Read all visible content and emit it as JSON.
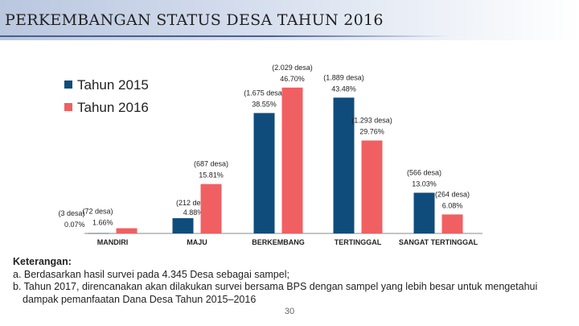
{
  "title": "PERKEMBANGAN STATUS DESA TAHUN 2016",
  "chart_data": {
    "type": "bar",
    "categories": [
      "MANDIRI",
      "MAJU",
      "BERKEMBANG",
      "TERTINGGAL",
      "SANGAT TERTINGGAL"
    ],
    "series": [
      {
        "name": "Tahun 2015",
        "color": "#0f4c7c",
        "values": [
          0.07,
          4.88,
          38.55,
          43.48,
          13.03
        ],
        "labels": [
          [
            "(3 desa)",
            "0.07%"
          ],
          [
            "(212 desa)",
            "4.88%"
          ],
          [
            "(1.675 desa)",
            "38.55%"
          ],
          [
            "(1.889 desa)",
            "43.48%"
          ],
          [
            "(566 desa)",
            "13.03%"
          ]
        ]
      },
      {
        "name": "Tahun 2016",
        "color": "#f06062",
        "values": [
          1.66,
          15.81,
          46.7,
          29.76,
          6.08
        ],
        "labels": [
          [
            "(72 desa)",
            "1.66%"
          ],
          [
            "(687 desa)",
            "15.81%"
          ],
          [
            "(2.029 desa)",
            "46.70%"
          ],
          [
            "(1.293 desa)",
            "29.76%"
          ],
          [
            "(264 desa)",
            "6.08%"
          ]
        ]
      }
    ],
    "ylim": [
      0,
      50
    ],
    "legend": "top-left"
  },
  "notes": {
    "heading": "Keterangan:",
    "items": [
      "a. Berdasarkan hasil survei pada 4.345 Desa sebagai sampel;",
      "b. Tahun 2017, direncanakan akan dilakukan survei bersama BPS dengan sampel yang lebih besar untuk mengetahui",
      "dampak pemanfaatan Dana Desa Tahun 2015–2016"
    ]
  },
  "page_number": "30"
}
